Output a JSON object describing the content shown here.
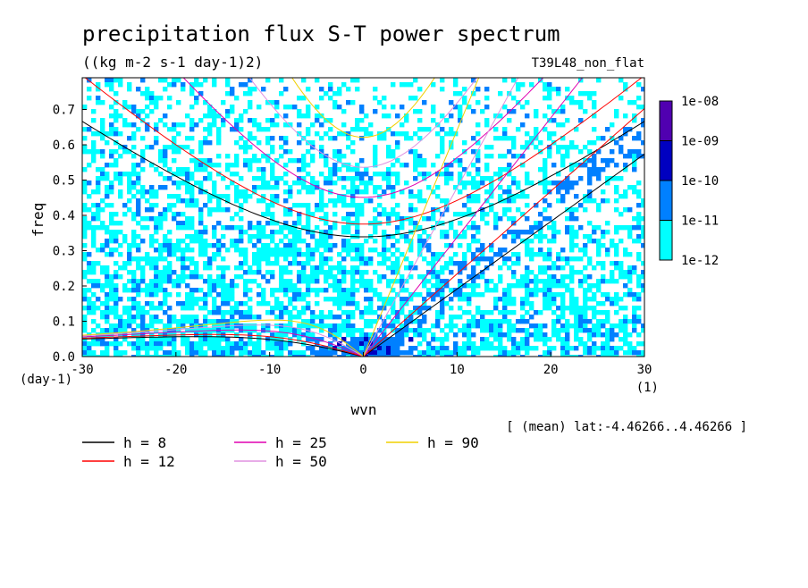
{
  "chart_data": {
    "type": "heatmap",
    "title": "precipitation flux S-T power spectrum",
    "subtitle": "((kg m-2 s-1 day-1)2)",
    "experiment": "T39L48_non_flat",
    "xlabel": "wvn",
    "x_unit": "(1)",
    "ylabel": "freq",
    "y_unit": "(day-1)",
    "xlim": [
      -30,
      30
    ],
    "ylim": [
      0,
      0.79
    ],
    "x_ticks": [
      "-30",
      "-20",
      "-10",
      "0",
      "10",
      "20",
      "30"
    ],
    "x_tick_values": [
      -30,
      -20,
      -10,
      0,
      10,
      20,
      30
    ],
    "y_ticks": [
      "0.0",
      "0.1",
      "0.2",
      "0.3",
      "0.4",
      "0.5",
      "0.6",
      "0.7"
    ],
    "y_tick_values": [
      0,
      0.1,
      0.2,
      0.3,
      0.4,
      0.5,
      0.6,
      0.7
    ],
    "footnote": "[ (mean) lat:-4.46266..4.46266 ]",
    "colorbar": {
      "labels": [
        "1e-08",
        "1e-09",
        "1e-10",
        "1e-11",
        "1e-12"
      ],
      "levels": [
        1e-12,
        1e-11,
        1e-10,
        1e-09,
        1e-08
      ],
      "colors": [
        "#00ffff",
        "#0080ff",
        "#0000c0",
        "#5000b0"
      ]
    },
    "dispersion_curves": [
      {
        "label": "h =  8",
        "h": 8,
        "color": "#000000"
      },
      {
        "label": "h = 12",
        "h": 12,
        "color": "#ff0000"
      },
      {
        "label": "h = 25",
        "h": 25,
        "color": "#e000b0"
      },
      {
        "label": "h = 50",
        "h": 50,
        "color": "#e090e0"
      },
      {
        "label": "h = 90",
        "h": 90,
        "color": "#f0d000"
      }
    ]
  }
}
